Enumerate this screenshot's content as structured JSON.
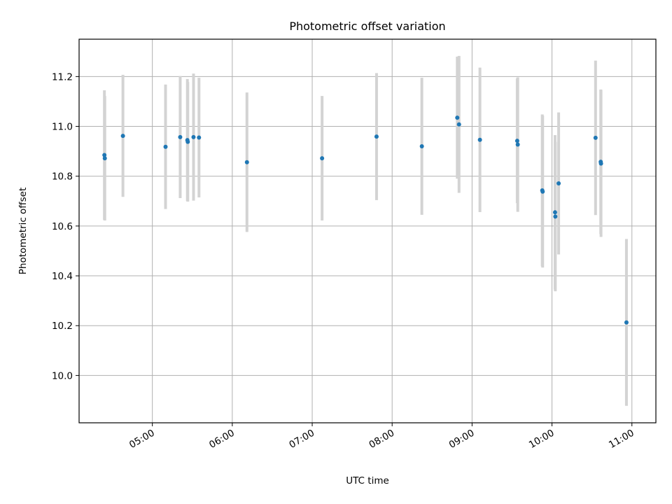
{
  "chart_data": {
    "type": "scatter",
    "title": "Photometric offset variation",
    "xlabel": "UTC time",
    "ylabel": "Photometric offset",
    "x_tick_labels": [
      "05:00",
      "06:00",
      "07:00",
      "08:00",
      "09:00",
      "10:00",
      "11:00"
    ],
    "x_ticks_minutes": [
      300,
      360,
      420,
      480,
      540,
      600,
      660
    ],
    "y_tick_labels": [
      "10.0",
      "10.2",
      "10.4",
      "10.6",
      "10.8",
      "11.0",
      "11.2"
    ],
    "y_ticks": [
      10.0,
      10.2,
      10.4,
      10.6,
      10.8,
      11.0,
      11.2
    ],
    "xlim_minutes": [
      245,
      678
    ],
    "ylim": [
      9.81,
      11.35
    ],
    "grid": true,
    "marker_color": "#1f77b4",
    "errorbar_color": "#d3d3d3",
    "points": [
      {
        "time": "04:24",
        "t": 264.0,
        "y": 10.885,
        "err": 0.26
      },
      {
        "time": "04:24",
        "t": 264.3,
        "y": 10.872,
        "err": 0.25
      },
      {
        "time": "04:38",
        "t": 277.9,
        "y": 10.962,
        "err": 0.245
      },
      {
        "time": "05:10",
        "t": 309.9,
        "y": 10.918,
        "err": 0.25
      },
      {
        "time": "05:21",
        "t": 320.9,
        "y": 10.957,
        "err": 0.245
      },
      {
        "time": "05:26",
        "t": 326.3,
        "y": 10.945,
        "err": 0.245
      },
      {
        "time": "05:26",
        "t": 326.6,
        "y": 10.938,
        "err": 0.24
      },
      {
        "time": "05:31",
        "t": 330.9,
        "y": 10.957,
        "err": 0.255
      },
      {
        "time": "05:35",
        "t": 335.0,
        "y": 10.955,
        "err": 0.24
      },
      {
        "time": "06:11",
        "t": 371.0,
        "y": 10.856,
        "err": 0.28
      },
      {
        "time": "07:07",
        "t": 427.4,
        "y": 10.872,
        "err": 0.25
      },
      {
        "time": "07:48",
        "t": 468.3,
        "y": 10.959,
        "err": 0.255
      },
      {
        "time": "08:22",
        "t": 502.3,
        "y": 10.92,
        "err": 0.275
      },
      {
        "time": "08:49",
        "t": 528.9,
        "y": 11.035,
        "err": 0.245
      },
      {
        "time": "08:50",
        "t": 530.2,
        "y": 11.008,
        "err": 0.275
      },
      {
        "time": "09:06",
        "t": 545.9,
        "y": 10.946,
        "err": 0.29
      },
      {
        "time": "09:34",
        "t": 573.9,
        "y": 10.942,
        "err": 0.25
      },
      {
        "time": "09:34",
        "t": 574.3,
        "y": 10.927,
        "err": 0.27
      },
      {
        "time": "09:53",
        "t": 592.7,
        "y": 10.743,
        "err": 0.305
      },
      {
        "time": "09:53",
        "t": 593.0,
        "y": 10.738,
        "err": 0.305
      },
      {
        "time": "10:02",
        "t": 602.3,
        "y": 10.655,
        "err": 0.31
      },
      {
        "time": "10:02",
        "t": 602.5,
        "y": 10.638,
        "err": 0.3
      },
      {
        "time": "10:05",
        "t": 605.0,
        "y": 10.771,
        "err": 0.285
      },
      {
        "time": "10:33",
        "t": 632.7,
        "y": 10.954,
        "err": 0.31
      },
      {
        "time": "10:37",
        "t": 636.6,
        "y": 10.858,
        "err": 0.29
      },
      {
        "time": "10:37",
        "t": 636.8,
        "y": 10.851,
        "err": 0.295
      },
      {
        "time": "10:56",
        "t": 655.9,
        "y": 10.213,
        "err": 0.335
      }
    ]
  }
}
